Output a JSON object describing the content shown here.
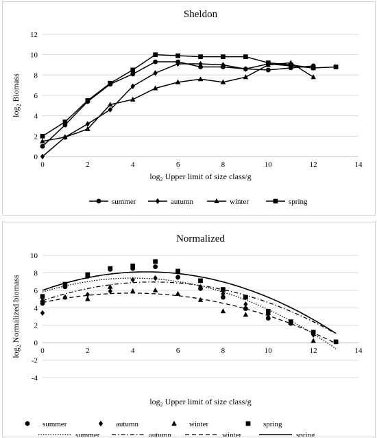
{
  "chart_data": [
    {
      "type": "line",
      "title": "Sheldon",
      "xlabel": "log₂ Upper limit of size class/g",
      "ylabel": "log₂ Biomass",
      "xlim": [
        0,
        14
      ],
      "ylim": [
        0,
        12
      ],
      "xticks": [
        "0",
        "2",
        "4",
        "6",
        "8",
        "10",
        "12",
        "14"
      ],
      "yticks": [
        "0",
        "2",
        "4",
        "6",
        "8",
        "10",
        "12"
      ],
      "grid": "horizontal",
      "legend_position": "bottom",
      "series": [
        {
          "name": "summer",
          "marker": "circle",
          "x": [
            0,
            1,
            2,
            3,
            4,
            5,
            6,
            7,
            8,
            9,
            10,
            11,
            12
          ],
          "y": [
            1.0,
            3.1,
            5.4,
            7.1,
            8.1,
            9.3,
            9.3,
            8.8,
            8.8,
            8.6,
            8.5,
            8.7,
            8.9
          ]
        },
        {
          "name": "autumn",
          "marker": "diamond",
          "x": [
            0,
            1,
            2,
            3,
            4,
            5,
            6,
            7,
            8,
            9,
            10,
            11,
            12
          ],
          "y": [
            0.0,
            1.9,
            3.2,
            4.6,
            6.9,
            8.2,
            9.1,
            9.1,
            9.0,
            8.6,
            9.1,
            8.9,
            8.7
          ]
        },
        {
          "name": "winter",
          "marker": "triangle",
          "x": [
            0,
            1,
            2,
            3,
            4,
            5,
            6,
            7,
            8,
            9,
            10,
            11,
            12
          ],
          "y": [
            1.5,
            1.9,
            2.7,
            5.1,
            5.6,
            6.7,
            7.3,
            7.6,
            7.3,
            7.8,
            9.0,
            9.2,
            7.8
          ]
        },
        {
          "name": "spring",
          "marker": "square",
          "x": [
            0,
            1,
            2,
            3,
            4,
            5,
            6,
            7,
            8,
            9,
            10,
            11,
            12,
            13
          ],
          "y": [
            2.0,
            3.4,
            5.5,
            7.2,
            8.5,
            10.0,
            9.9,
            9.8,
            9.8,
            9.8,
            9.2,
            9.0,
            8.7,
            8.8
          ]
        }
      ]
    },
    {
      "type": "scatter",
      "title": "Normalized",
      "xlabel": "log₂ Upper limit of size class/g",
      "ylabel": "log₂ Normalized biomass",
      "xlim": [
        0,
        14
      ],
      "ylim": [
        -4,
        10
      ],
      "xticks": [
        "0",
        "2",
        "4",
        "6",
        "8",
        "10",
        "12",
        "14"
      ],
      "yticks": [
        "-4",
        "-2",
        "0",
        "2",
        "4",
        "6",
        "8",
        "10"
      ],
      "grid": "horizontal",
      "legend_position": "bottom",
      "series": [
        {
          "name": "summer",
          "marker": "circle",
          "x": [
            0,
            1,
            2,
            3,
            4,
            5,
            6,
            7,
            8,
            9,
            10,
            11,
            12
          ],
          "y": [
            4.5,
            6.4,
            7.6,
            8.4,
            8.5,
            8.7,
            7.5,
            6.2,
            5.2,
            3.9,
            2.8,
            2.2,
            1.2
          ]
        },
        {
          "name": "autumn",
          "marker": "diamond",
          "x": [
            0,
            1,
            2,
            3,
            4,
            5,
            6,
            7,
            8,
            9,
            10,
            11,
            12
          ],
          "y": [
            3.4,
            5.2,
            5.5,
            5.9,
            7.2,
            7.4,
            7.5,
            6.4,
            5.6,
            4.4,
            3.2,
            2.3,
            0.9
          ]
        },
        {
          "name": "winter",
          "marker": "triangle",
          "x": [
            0,
            1,
            2,
            3,
            4,
            5,
            6,
            7,
            8,
            9,
            10,
            11,
            12
          ],
          "y": [
            4.9,
            5.2,
            5.0,
            6.4,
            5.9,
            6.0,
            5.6,
            4.9,
            3.6,
            3.2,
            3.4,
            2.3,
            0.2
          ]
        },
        {
          "name": "spring",
          "marker": "square",
          "x": [
            0,
            1,
            2,
            3,
            4,
            5,
            6,
            7,
            8,
            9,
            10,
            11,
            12,
            13
          ],
          "y": [
            5.3,
            6.7,
            7.8,
            8.5,
            8.8,
            9.3,
            8.2,
            7.1,
            6.1,
            5.2,
            3.6,
            2.4,
            1.2,
            0.1
          ]
        }
      ],
      "trendlines": [
        {
          "name": "summer",
          "style": "dotted",
          "coefficients": [
            -0.1,
            0.8,
            5.8
          ]
        },
        {
          "name": "autumn",
          "style": "dash-dot",
          "coefficients": [
            -0.09,
            0.88,
            4.8
          ]
        },
        {
          "name": "winter",
          "style": "dashed",
          "coefficients": [
            -0.07,
            0.55,
            4.6
          ]
        },
        {
          "name": "spring",
          "style": "solid",
          "coefficients": [
            -0.1,
            0.92,
            6.0
          ]
        }
      ]
    }
  ]
}
